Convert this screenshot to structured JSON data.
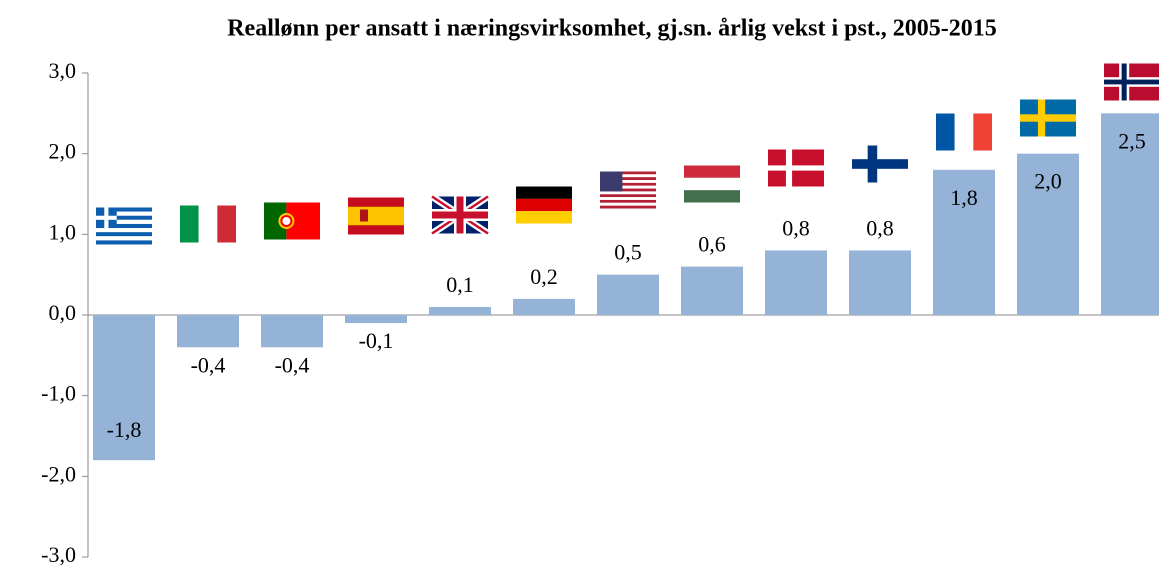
{
  "chart_data": {
    "type": "bar",
    "title": "Reallønn per ansatt i næringsvirksomhet, gj.sn. årlig vekst i pst., 2005-2015",
    "categories": [
      null,
      null,
      null,
      null,
      null,
      null,
      null,
      null,
      null,
      null,
      null,
      null,
      null
    ],
    "values": [
      -1.8,
      -0.4,
      -0.4,
      -0.1,
      0.1,
      0.2,
      0.5,
      0.6,
      0.8,
      0.8,
      1.8,
      2.0,
      2.5
    ],
    "value_labels": [
      "-1,8",
      "-0,4",
      "-0,4",
      "-0,1",
      "0,1",
      "0,2",
      "0,5",
      "0,6",
      "0,8",
      "0,8",
      "1,8",
      "2,0",
      "2,5"
    ],
    "color": "#95b3d7",
    "ylim": [
      -3,
      3
    ],
    "yticks": [
      {
        "value": -3,
        "label": "-3,0"
      },
      {
        "value": -2,
        "label": "-2,0"
      },
      {
        "value": -1,
        "label": "-1,0"
      },
      {
        "value": 0,
        "label": "0,0"
      },
      {
        "value": 1,
        "label": "1,0"
      },
      {
        "value": 2,
        "label": "2,0"
      },
      {
        "value": 3,
        "label": "3,0"
      }
    ],
    "grid": false
  }
}
